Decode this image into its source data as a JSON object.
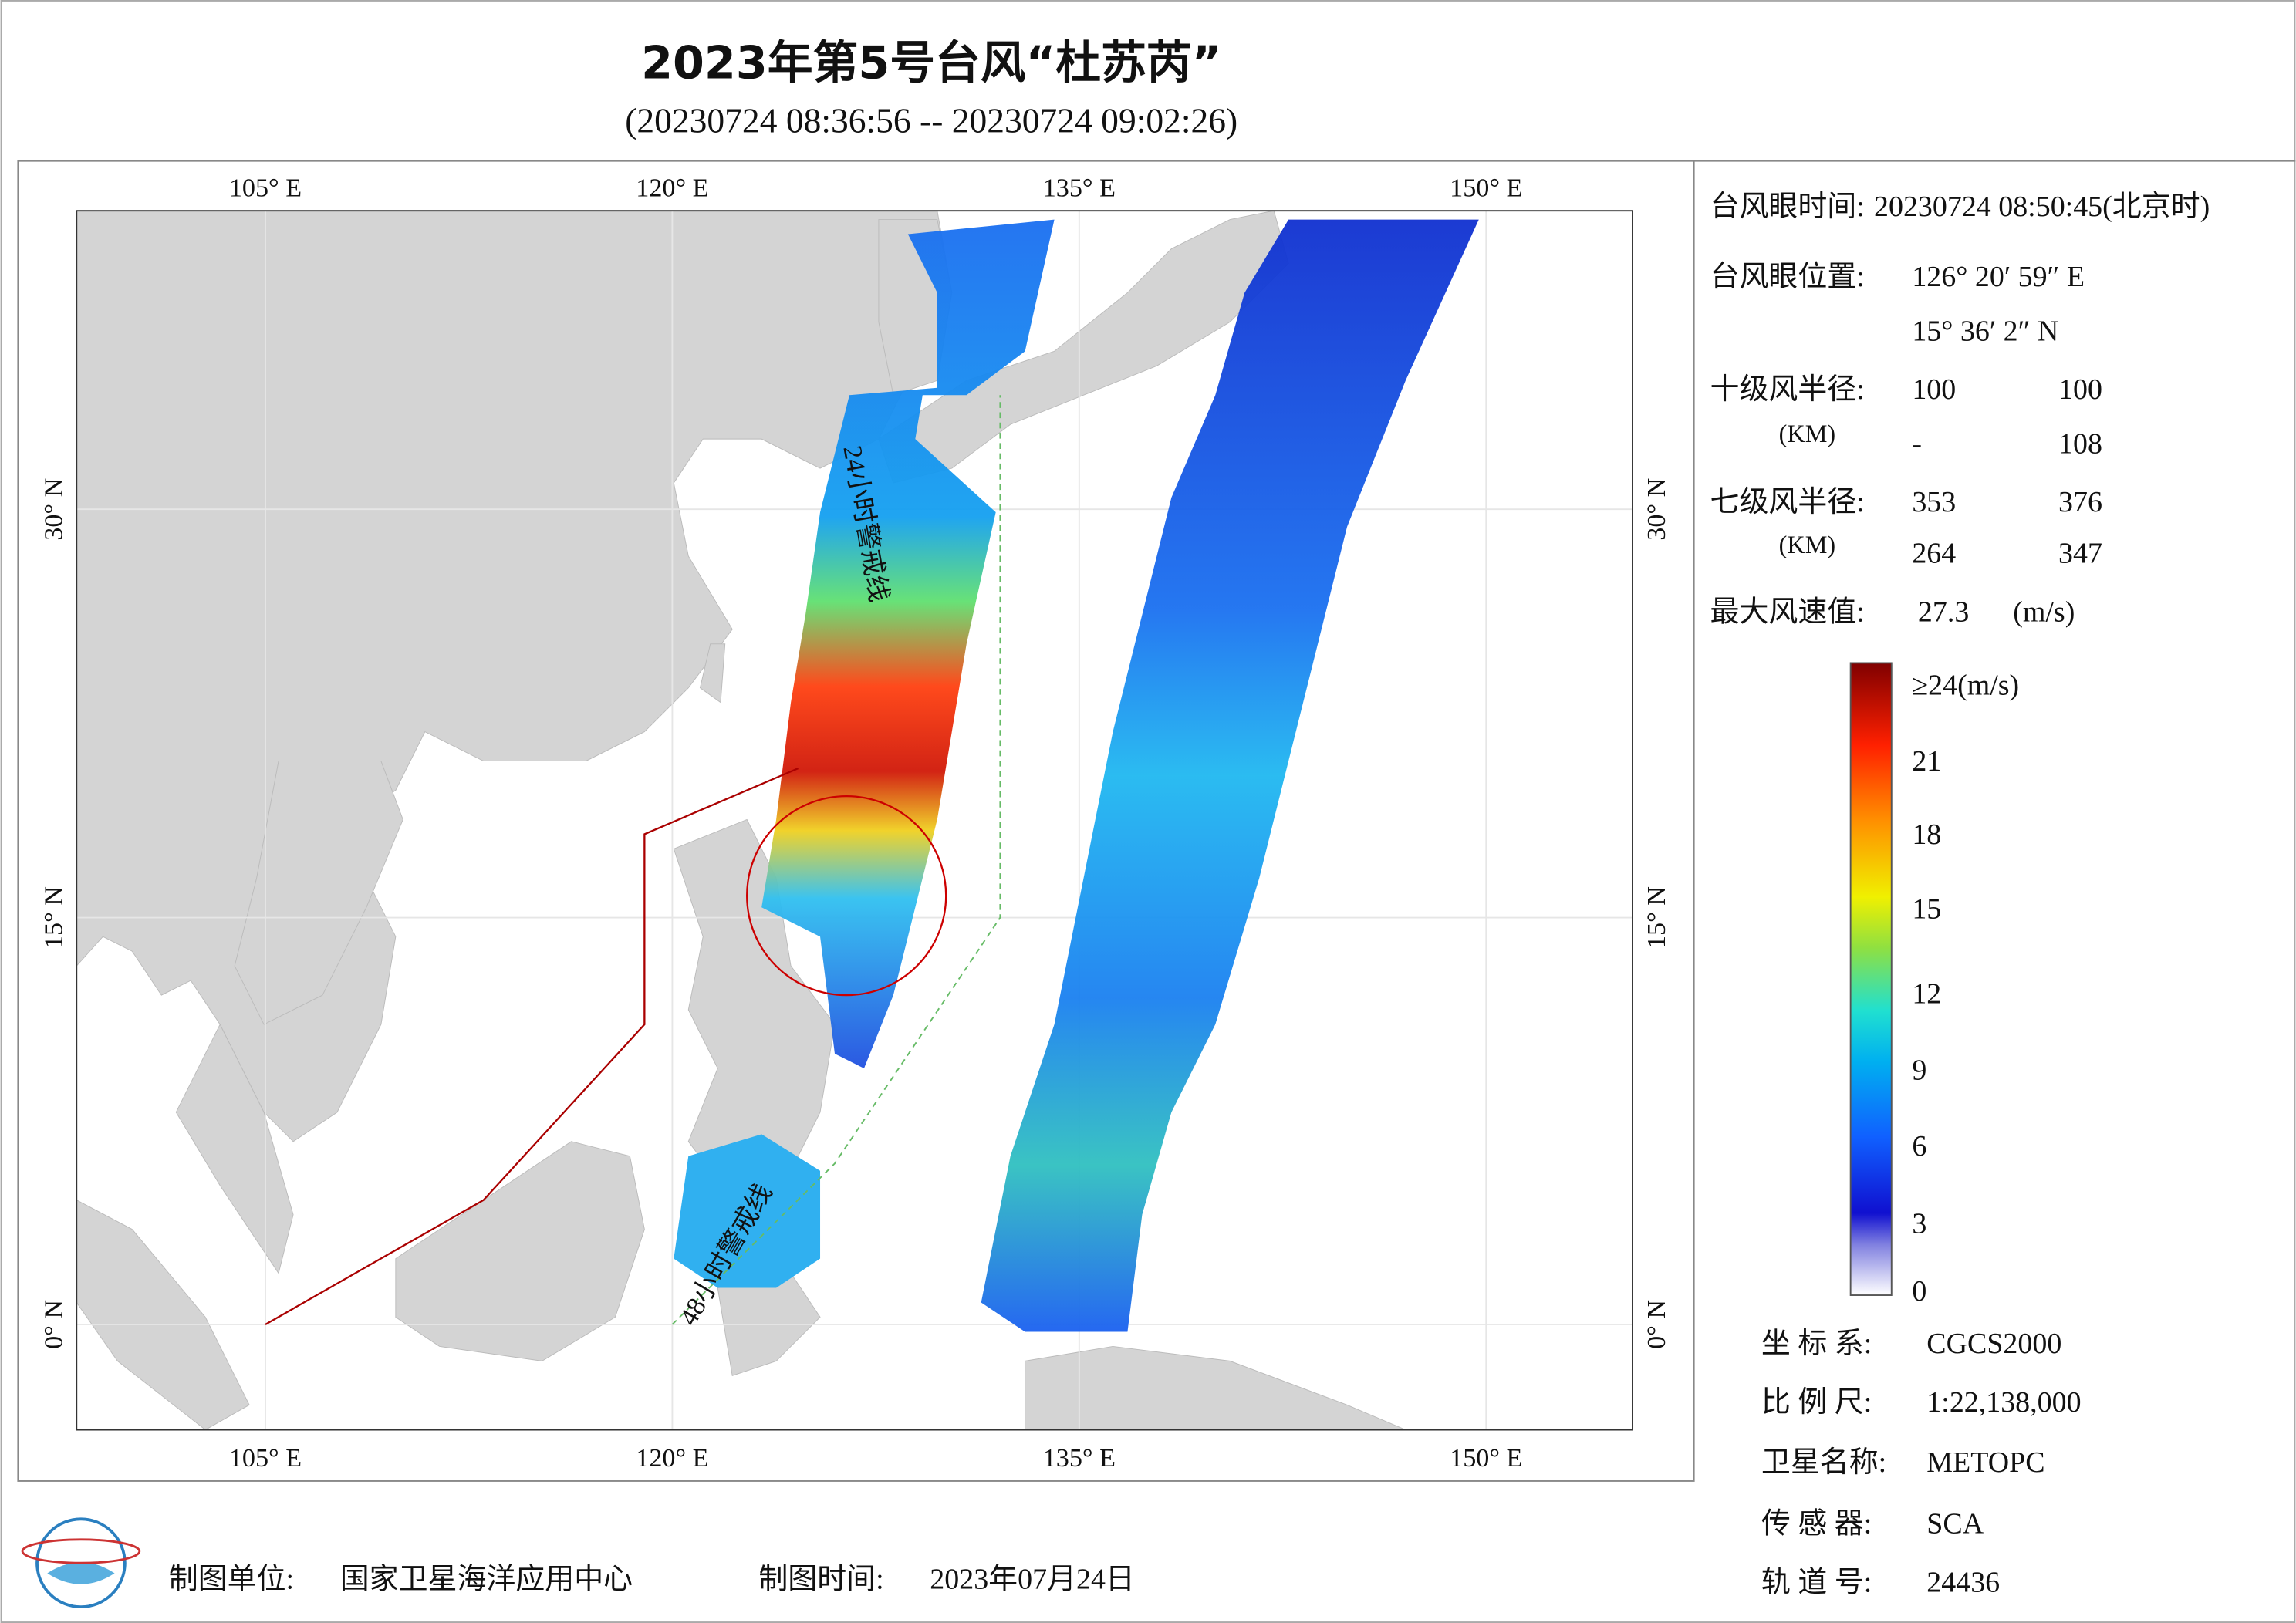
{
  "header": {
    "title": "2023年第5号台风“杜苏芮”",
    "subtitle": "(20230724 08:36:56 -- 20230724 09:02:26)"
  },
  "map": {
    "top_labels": [
      "105° E",
      "120° E",
      "135° E",
      "150° E"
    ],
    "bottom_labels": [
      "105° E",
      "120° E",
      "135° E",
      "150° E"
    ],
    "left_labels": [
      "30° N",
      "15° N",
      "0° N"
    ],
    "right_labels": [
      "30° N",
      "15° N",
      "0° N"
    ],
    "annotations": [
      "24小时警戒线",
      "48小时警戒线"
    ]
  },
  "info": {
    "eye_time": {
      "label": "台风眼时间:",
      "value": "20230724 08:50:45(北京时)"
    },
    "eye_position": {
      "label": "台风眼位置:",
      "lon": "126° 20′ 59″ E",
      "lat": "15° 36′ 2″ N"
    },
    "r10": {
      "label": "十级风半径:",
      "unit": "(KM)",
      "values": [
        "100",
        "100",
        "-",
        "108"
      ]
    },
    "r7": {
      "label": "七级风半径:",
      "unit": "(KM)",
      "values": [
        "353",
        "376",
        "264",
        "347"
      ]
    },
    "max_wind": {
      "label": "最大风速值:",
      "value": "27.3",
      "unit": "(m/s)"
    }
  },
  "colorbar": {
    "labels": [
      "≥24(m/s)",
      "21",
      "18",
      "15",
      "12",
      "9",
      "6",
      "3",
      "0"
    ]
  },
  "meta": [
    {
      "label": "坐 标 系:",
      "value": "CGCS2000"
    },
    {
      "label": "比 例 尺:",
      "value": "1:22,138,000"
    },
    {
      "label": "卫星名称:",
      "value": "METOPC"
    },
    {
      "label": "传 感 器:",
      "value": "SCA"
    },
    {
      "label": "轨 道 号:",
      "value": "24436"
    }
  ],
  "footer": {
    "maker_label": "制图单位:",
    "maker": "国家卫星海洋应用中心",
    "date_label": "制图时间:",
    "date": "2023年07月24日"
  }
}
